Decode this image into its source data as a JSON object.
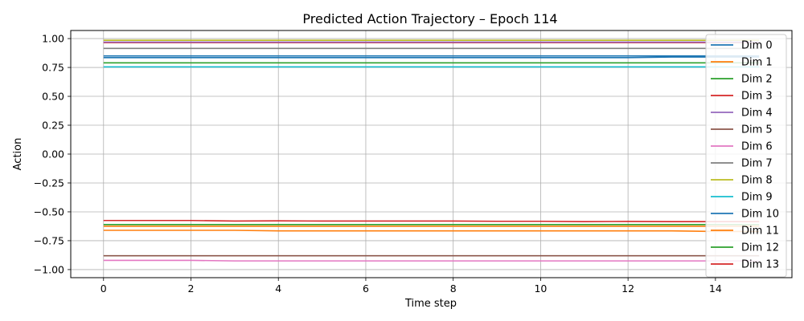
{
  "chart_data": {
    "type": "line",
    "title": "Predicted Action Trajectory – Epoch 114",
    "xlabel": "Time step",
    "ylabel": "Action",
    "xlim": [
      -0.75,
      15.75
    ],
    "ylim": [
      -1.07,
      1.07
    ],
    "xticks": [
      0,
      2,
      4,
      6,
      8,
      10,
      12,
      14
    ],
    "xtick_labels": [
      "0",
      "2",
      "4",
      "6",
      "8",
      "10",
      "12",
      "14"
    ],
    "yticks": [
      -1.0,
      -0.75,
      -0.5,
      -0.25,
      0.0,
      0.25,
      0.5,
      0.75,
      1.0
    ],
    "ytick_labels": [
      "−1.00",
      "−0.75",
      "−0.50",
      "−0.25",
      "0.00",
      "0.25",
      "0.50",
      "0.75",
      "1.00"
    ],
    "grid": true,
    "legend_position": "right",
    "x": [
      0,
      1,
      2,
      3,
      4,
      5,
      6,
      7,
      8,
      9,
      10,
      11,
      12,
      13,
      14,
      15
    ],
    "series": [
      {
        "name": "Dim 0",
        "color": "#1f77b4",
        "values": [
          0.85,
          0.85,
          0.85,
          0.85,
          0.85,
          0.85,
          0.85,
          0.85,
          0.85,
          0.85,
          0.85,
          0.85,
          0.85,
          0.85,
          0.85,
          0.85
        ]
      },
      {
        "name": "Dim 1",
        "color": "#ff7f0e",
        "values": [
          -0.66,
          -0.66,
          -0.66,
          -0.66,
          -0.665,
          -0.665,
          -0.665,
          -0.665,
          -0.665,
          -0.665,
          -0.665,
          -0.665,
          -0.665,
          -0.665,
          -0.67,
          -0.67
        ]
      },
      {
        "name": "Dim 2",
        "color": "#2ca02c",
        "values": [
          0.79,
          0.79,
          0.79,
          0.79,
          0.79,
          0.79,
          0.79,
          0.79,
          0.79,
          0.79,
          0.79,
          0.79,
          0.79,
          0.79,
          0.79,
          0.79
        ]
      },
      {
        "name": "Dim 3",
        "color": "#d62728",
        "values": [
          0.965,
          0.965,
          0.965,
          0.965,
          0.965,
          0.965,
          0.965,
          0.965,
          0.965,
          0.965,
          0.965,
          0.965,
          0.965,
          0.965,
          0.965,
          0.965
        ]
      },
      {
        "name": "Dim 4",
        "color": "#9467bd",
        "values": [
          0.97,
          0.97,
          0.97,
          0.97,
          0.97,
          0.97,
          0.97,
          0.97,
          0.97,
          0.97,
          0.97,
          0.97,
          0.97,
          0.97,
          0.97,
          0.97
        ]
      },
      {
        "name": "Dim 5",
        "color": "#8c564b",
        "values": [
          -0.88,
          -0.88,
          -0.88,
          -0.88,
          -0.88,
          -0.88,
          -0.88,
          -0.88,
          -0.88,
          -0.88,
          -0.88,
          -0.88,
          -0.88,
          -0.88,
          -0.88,
          -0.88
        ]
      },
      {
        "name": "Dim 6",
        "color": "#e377c2",
        "values": [
          -0.92,
          -0.92,
          -0.92,
          -0.925,
          -0.925,
          -0.925,
          -0.925,
          -0.925,
          -0.925,
          -0.925,
          -0.925,
          -0.925,
          -0.925,
          -0.925,
          -0.925,
          -0.925
        ]
      },
      {
        "name": "Dim 7",
        "color": "#7f7f7f",
        "values": [
          0.915,
          0.915,
          0.915,
          0.915,
          0.915,
          0.915,
          0.915,
          0.915,
          0.915,
          0.915,
          0.915,
          0.915,
          0.915,
          0.915,
          0.915,
          0.915
        ]
      },
      {
        "name": "Dim 8",
        "color": "#bcbd22",
        "values": [
          0.985,
          0.985,
          0.985,
          0.985,
          0.985,
          0.985,
          0.985,
          0.985,
          0.985,
          0.985,
          0.985,
          0.985,
          0.985,
          0.985,
          0.985,
          0.985
        ]
      },
      {
        "name": "Dim 9",
        "color": "#17becf",
        "values": [
          0.755,
          0.755,
          0.755,
          0.755,
          0.755,
          0.755,
          0.755,
          0.755,
          0.755,
          0.755,
          0.755,
          0.755,
          0.755,
          0.755,
          0.755,
          0.755
        ]
      },
      {
        "name": "Dim 10",
        "color": "#1f77b4",
        "values": [
          0.835,
          0.835,
          0.835,
          0.835,
          0.835,
          0.835,
          0.835,
          0.835,
          0.835,
          0.835,
          0.835,
          0.835,
          0.835,
          0.84,
          0.84,
          0.84
        ]
      },
      {
        "name": "Dim 11",
        "color": "#ff7f0e",
        "values": [
          -0.625,
          -0.625,
          -0.625,
          -0.625,
          -0.625,
          -0.625,
          -0.625,
          -0.625,
          -0.625,
          -0.625,
          -0.625,
          -0.625,
          -0.625,
          -0.625,
          -0.625,
          -0.625
        ]
      },
      {
        "name": "Dim 12",
        "color": "#2ca02c",
        "values": [
          -0.61,
          -0.61,
          -0.61,
          -0.61,
          -0.61,
          -0.61,
          -0.61,
          -0.61,
          -0.61,
          -0.61,
          -0.61,
          -0.61,
          -0.61,
          -0.61,
          -0.61,
          -0.61
        ]
      },
      {
        "name": "Dim 13",
        "color": "#d62728",
        "values": [
          -0.575,
          -0.575,
          -0.575,
          -0.58,
          -0.578,
          -0.58,
          -0.58,
          -0.58,
          -0.58,
          -0.582,
          -0.582,
          -0.585,
          -0.583,
          -0.585,
          -0.585,
          -0.585
        ]
      }
    ]
  }
}
